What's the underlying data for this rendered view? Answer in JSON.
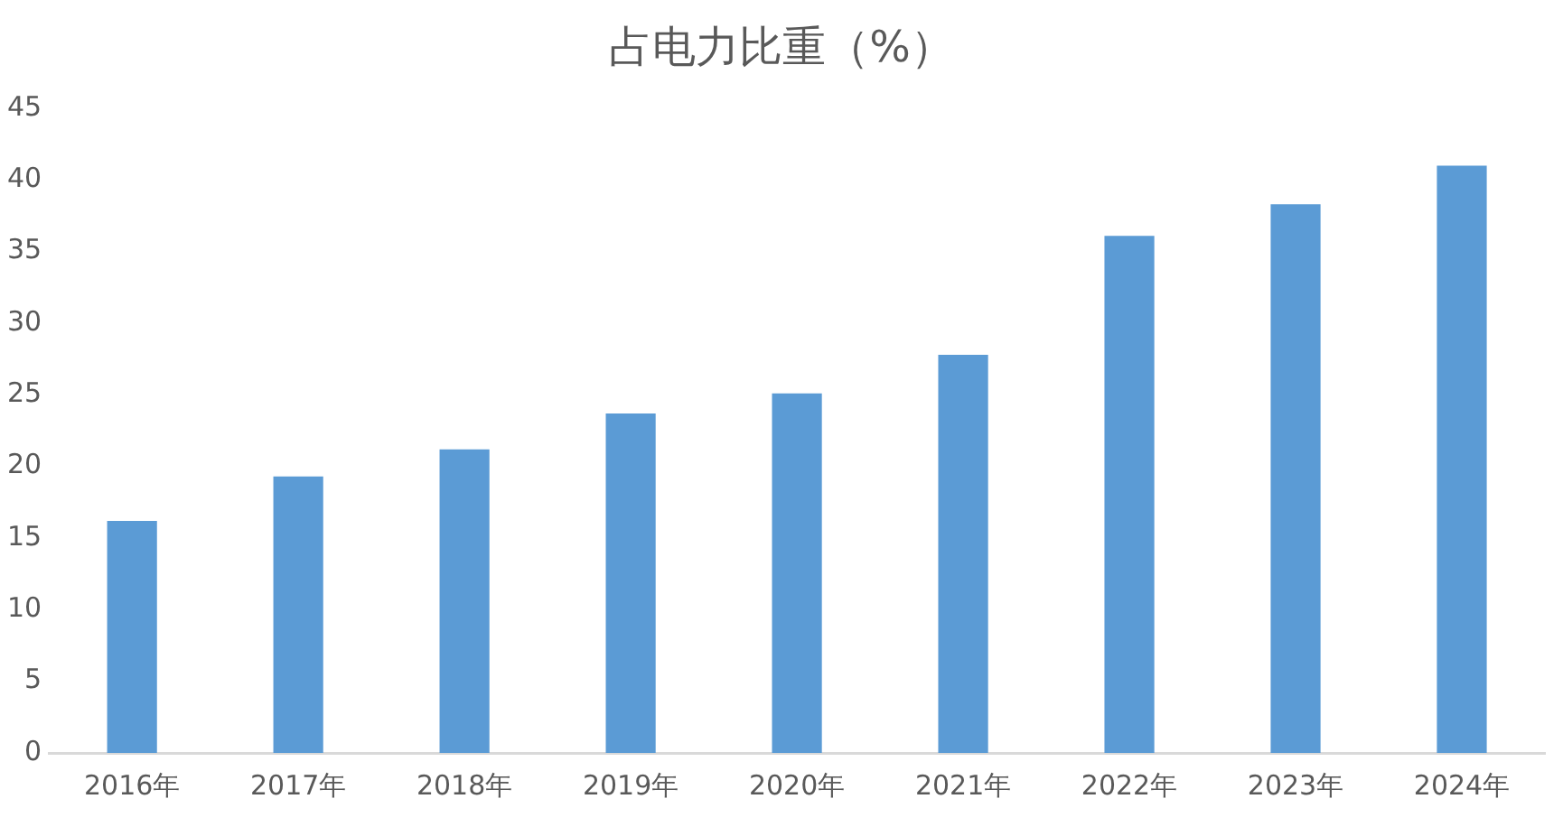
{
  "chart_data": {
    "type": "bar",
    "title": "占电力比重（%）",
    "categories": [
      "2016年",
      "2017年",
      "2018年",
      "2019年",
      "2020年",
      "2021年",
      "2022年",
      "2023年",
      "2024年"
    ],
    "values": [
      16.2,
      19.3,
      21.2,
      23.7,
      25.1,
      27.8,
      36.1,
      38.3,
      41.0
    ],
    "color": "#5b9bd5",
    "ylim": [
      0,
      45
    ],
    "yticks": [
      0,
      5,
      10,
      15,
      20,
      25,
      30,
      35,
      40,
      45
    ],
    "grid": false,
    "legend": false
  }
}
